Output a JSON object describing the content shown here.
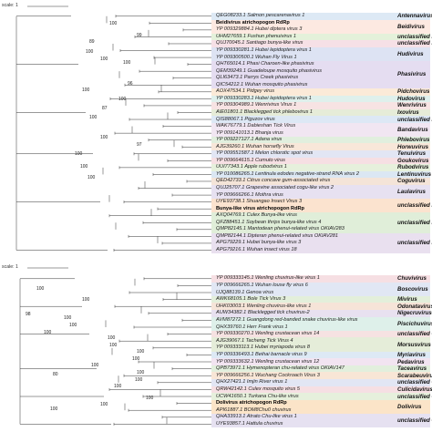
{
  "panels": [
    {
      "scale_label": "scale: 1",
      "leaves": [
        {
          "label": "QEG08233.1 Salmon pescarenavirus 1",
          "bold": false
        },
        {
          "label": "Beidivirus atrichopogon RdRp",
          "bold": true
        },
        {
          "label": "YP 009329884.1 Hubei diptera virus 3",
          "bold": false
        },
        {
          "label": "UHM27659.1 Fushun phenuivirus 1",
          "bold": false
        },
        {
          "label": "QUJ70045.1 Santiago bunya-like virus",
          "bold": false
        },
        {
          "label": "YP 009330281.1 Hubei lepidoptera virus 1",
          "bold": false
        },
        {
          "label": "YP 009300500.1 Wuhan Fly Virus 1",
          "bold": false
        },
        {
          "label": "QHT65014.1 Phasi Charoen-like phasivirus",
          "bold": false
        },
        {
          "label": "QEM39249.1 Guadeloupe mosquito phasivirus",
          "bold": false
        },
        {
          "label": "QLI63473.1 Parrys Creek phasivirus",
          "bold": false
        },
        {
          "label": "QIC54212.1 Wuhan mosquito phasivirus",
          "bold": false
        },
        {
          "label": "AOX47534.1 Pidgey virus",
          "bold": false
        },
        {
          "label": "YP 009330283.1 Hubei lepidoptera virus 1",
          "bold": false
        },
        {
          "label": "YP 009304989.1 Wenrivirus Virus 1",
          "bold": false
        },
        {
          "label": "AIE01801.1 Blacklegged tick phlebovirus 1",
          "bold": false
        },
        {
          "label": "QIS88067.1 Piguzov virus",
          "bold": false
        },
        {
          "label": "WAK76779.1 Dabieshan Tick Virus",
          "bold": false
        },
        {
          "label": "YP 009141013.1 Bhanja virus",
          "bold": false
        },
        {
          "label": "YP 009227127.1 Adana virus",
          "bold": false
        },
        {
          "label": "AJG39260.1 Wuhan horsefly Virus",
          "bold": false
        },
        {
          "label": "YP 009551587.1 Melon chlorotic spot virus",
          "bold": false
        },
        {
          "label": "YP 009664615.1 Cumuto virus",
          "bold": false
        },
        {
          "label": "UUI77343.1 Apple rubodvirus 1",
          "bold": false
        },
        {
          "label": "YP 010086265.1 Lentinula edodes negative-strand RNA virus 2",
          "bold": false
        },
        {
          "label": "QED42733.1 Citrus concave gum-associated virus",
          "bold": false
        },
        {
          "label": "QUJ25707.1 Grapevine associated cogu-like virus 2",
          "bold": false
        },
        {
          "label": "YP 009666266.1 Mothra virus",
          "bold": false
        },
        {
          "label": "UYE93738.1 Shuangao Insect Virus 3",
          "bold": false
        },
        {
          "label": "Bunya-like virus atrichopogon RdRp",
          "bold": true
        },
        {
          "label": "AXQ04769.1 Culex Bunya-like virus",
          "bold": false
        },
        {
          "label": "QFZ88451.1 Soybean thrips bunya-like virus 4",
          "bold": false
        },
        {
          "label": "QMP82145.1 Mantodean phenui-related virus OKIAV283",
          "bold": false
        },
        {
          "label": "QMP82144.1 Dipteran phenui-related virus OKIAV281",
          "bold": false
        },
        {
          "label": "APG79229.1 Hubei bunya-like virus 3",
          "bold": false
        },
        {
          "label": "APG79216.1 Wuhan insect virus 18",
          "bold": false
        }
      ],
      "clades": [
        {
          "name": "Antennavirus"
        },
        {
          "name": "Beidivirus"
        },
        {
          "name": "unclassified Phenuiv"
        },
        {
          "name": "unclassified Bunyav"
        },
        {
          "name": "Hudivirus"
        },
        {
          "name": "Phasivirus"
        },
        {
          "name": "Pidchovirus"
        },
        {
          "name": "Hudovirus"
        },
        {
          "name": "Wenrivirus"
        },
        {
          "name": "Ixovirus"
        },
        {
          "name": "unclassified Ribov"
        },
        {
          "name": "Bandavirus"
        },
        {
          "name": "Phlebovirus"
        },
        {
          "name": "Horwuvirus"
        },
        {
          "name": "Tenuivirus"
        },
        {
          "name": "Goukovirus"
        },
        {
          "name": "Rubodvirus"
        },
        {
          "name": "Lentinuvirus"
        },
        {
          "name": "Coguvirus"
        },
        {
          "name": "Laulavirus"
        },
        {
          "name": "unclassified Peribuny"
        },
        {
          "name": "unclassified Phenuiv"
        },
        {
          "name": "unclassified Ribov"
        }
      ],
      "bootstraps": [
        "100",
        "99",
        "89",
        "100",
        "100",
        "100",
        "96",
        "100",
        "100",
        "87",
        "100",
        "100",
        "97",
        "100",
        "100",
        "100"
      ]
    },
    {
      "scale_label": "scale: 1",
      "leaves": [
        {
          "label": "YP 009333145.1 Wenling chuvirus-like virus 1",
          "bold": false
        },
        {
          "label": "YP 009666265.1 Wuhan louse fly virus 6",
          "bold": false
        },
        {
          "label": "UJQ88139.1 Genoa virus",
          "bold": false
        },
        {
          "label": "AWK68105.1 Bole Tick Virus 3",
          "bold": false
        },
        {
          "label": "UHK03003.1 Wenling chuvirus-like virus 1",
          "bold": false
        },
        {
          "label": "AUW34382.1 Blacklegged tick chuvirus-2",
          "bold": false
        },
        {
          "label": "AVM87272.1 Guangdong red-banded snake chuvirus-like virus",
          "bold": false
        },
        {
          "label": "QHX39760.1 Herr Frank virus 1",
          "bold": false
        },
        {
          "label": "YP 009330270.1 Wenling crustacean virus 14",
          "bold": false
        },
        {
          "label": "AJG39067.1 Tacheng Tick Virus 4",
          "bold": false
        },
        {
          "label": "YP 009333113.1 Hubei myriapoda virus 8",
          "bold": false
        },
        {
          "label": "YP 009336493.1 Beihai barnacle virus 9",
          "bold": false
        },
        {
          "label": "YP 009333632.1 Wenling crustacean virus 12",
          "bold": false
        },
        {
          "label": "QPB73971.1 Hymenopteran chu-related virus OKIAV147",
          "bold": false
        },
        {
          "label": "YP 009666256.1 Wuchang Cockroach Virus 3",
          "bold": false
        },
        {
          "label": "QHX27421.1 Imjin River virus 1",
          "bold": false
        },
        {
          "label": "QRW42142.1 Culex mosquito virus 5",
          "bold": false
        },
        {
          "label": "UCW41650.1 Turkana Chu-like virus",
          "bold": false
        },
        {
          "label": "Dolivirus atrichopogon RdRp",
          "bold": true
        },
        {
          "label": "API61887.1 BOM8Chu0 chuvirus",
          "bold": false
        },
        {
          "label": "QHA33913.1 Atrato Chu-like virus 1",
          "bold": false
        },
        {
          "label": "UYE93857.1 Hattula chuvirus",
          "bold": false
        }
      ],
      "clades": [
        {
          "name": "Chuvivirus"
        },
        {
          "name": "Boscovirus"
        },
        {
          "name": "Mivirus"
        },
        {
          "name": "Odonatavirus"
        },
        {
          "name": "Nigecruvirus"
        },
        {
          "name": "Piscichuvirus"
        },
        {
          "name": "unclassified Chu"
        },
        {
          "name": "Morsusvirus"
        },
        {
          "name": "Myriavirus"
        },
        {
          "name": "Pedavirus"
        },
        {
          "name": "Taceavirus"
        },
        {
          "name": "Scarabeuvirus"
        },
        {
          "name": "unclassified Chu"
        },
        {
          "name": "Culicidavirus"
        },
        {
          "name": "unclassified Chu"
        },
        {
          "name": "Dolivirus"
        },
        {
          "name": "unclassified Chu"
        }
      ],
      "bootstraps": [
        "100",
        "98",
        "100",
        "100",
        "100",
        "100",
        "80",
        "100",
        "100",
        "100",
        "100",
        "100",
        "100",
        "100",
        "100",
        "100",
        "100",
        "100"
      ]
    }
  ]
}
